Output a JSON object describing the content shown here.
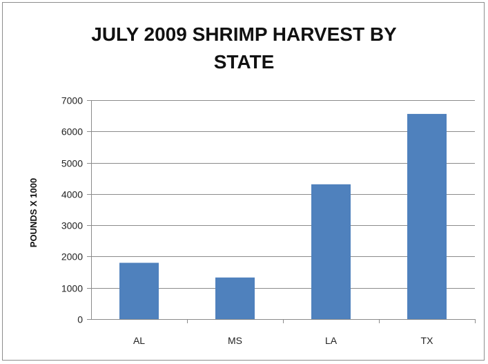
{
  "chart_data": {
    "type": "bar",
    "title": "JULY 2009 SHRIMP HARVEST BY STATE",
    "xlabel": "",
    "ylabel": "POUNDS X 1000",
    "categories": [
      "AL",
      "MS",
      "LA",
      "TX"
    ],
    "values": [
      1800,
      1330,
      4310,
      6560
    ],
    "ylim": [
      0,
      7000
    ],
    "yticks": [
      0,
      1000,
      2000,
      3000,
      4000,
      5000,
      6000,
      7000
    ],
    "grid": true,
    "legend": "none",
    "bar_color": "#4f81bd"
  }
}
